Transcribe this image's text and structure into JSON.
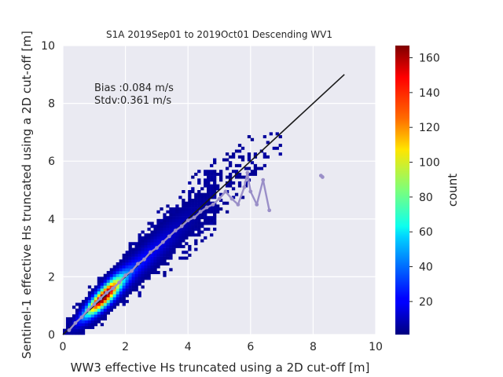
{
  "chart_data": {
    "type": "heatmap",
    "title": "S1A 2019Sep01 to 2019Oct01 Descending WV1",
    "xlabel": "WW3 effective Hs truncated using a 2D cut-off [m]",
    "ylabel": "Sentinel-1 effective Hs truncated using a 2D cut-off [m]",
    "xlim": [
      0,
      10
    ],
    "ylim": [
      0,
      10
    ],
    "x_ticks": [
      "0",
      "2",
      "4",
      "6",
      "8",
      "10"
    ],
    "y_ticks": [
      "0",
      "2",
      "4",
      "6",
      "8",
      "10"
    ],
    "grid": true,
    "colormap": "jet",
    "colorbar": {
      "label": "count",
      "range": [
        1,
        167
      ],
      "ticks": [
        "20",
        "40",
        "60",
        "80",
        "100",
        "120",
        "140",
        "160"
      ],
      "tick_values": [
        20,
        40,
        60,
        80,
        100,
        120,
        140,
        160
      ]
    },
    "annotations": [
      "Bias :0.084 m/s",
      "Stdv:0.361 m/s"
    ],
    "identity_line": {
      "x": [
        0,
        9
      ],
      "y": [
        0,
        9
      ],
      "color": "#1a1a1a"
    },
    "density_bins_estimated": [
      {
        "x": 0.2,
        "y": 0.2,
        "count": 20
      },
      {
        "x": 0.5,
        "y": 0.5,
        "count": 40
      },
      {
        "x": 0.8,
        "y": 0.8,
        "count": 70
      },
      {
        "x": 1.0,
        "y": 1.0,
        "count": 100
      },
      {
        "x": 1.2,
        "y": 1.2,
        "count": 145
      },
      {
        "x": 1.3,
        "y": 1.3,
        "count": 167
      },
      {
        "x": 1.5,
        "y": 1.5,
        "count": 130
      },
      {
        "x": 1.7,
        "y": 1.7,
        "count": 85
      },
      {
        "x": 2.0,
        "y": 2.0,
        "count": 50
      },
      {
        "x": 2.5,
        "y": 2.5,
        "count": 25
      },
      {
        "x": 3.0,
        "y": 3.0,
        "count": 12
      },
      {
        "x": 3.5,
        "y": 3.5,
        "count": 6
      },
      {
        "x": 4.0,
        "y": 4.0,
        "count": 3
      }
    ],
    "series": [
      {
        "x": [
          0.2,
          0.4,
          0.6,
          0.8,
          1.0,
          1.2,
          1.4,
          1.6,
          1.8,
          2.0,
          2.2,
          2.4,
          2.6,
          2.8,
          3.0,
          3.2,
          3.4,
          3.6,
          3.8,
          4.0,
          4.2,
          4.4,
          4.6,
          4.8,
          5.0,
          5.2,
          5.4,
          5.6,
          5.8,
          5.9,
          6.0,
          6.2,
          6.4,
          6.6
        ],
        "y": [
          0.15,
          0.4,
          0.6,
          0.85,
          1.05,
          1.25,
          1.45,
          1.6,
          1.8,
          2.05,
          2.2,
          2.45,
          2.6,
          2.85,
          3.0,
          3.2,
          3.4,
          3.6,
          3.75,
          3.95,
          4.05,
          4.25,
          4.4,
          4.5,
          4.7,
          4.95,
          4.7,
          4.5,
          5.1,
          5.6,
          4.95,
          4.5,
          5.35,
          4.3
        ],
        "color": "#9a8fc8"
      },
      {
        "x": [
          8.25,
          8.3
        ],
        "y": [
          5.5,
          5.45
        ],
        "color": "#9a8fc8"
      }
    ]
  }
}
